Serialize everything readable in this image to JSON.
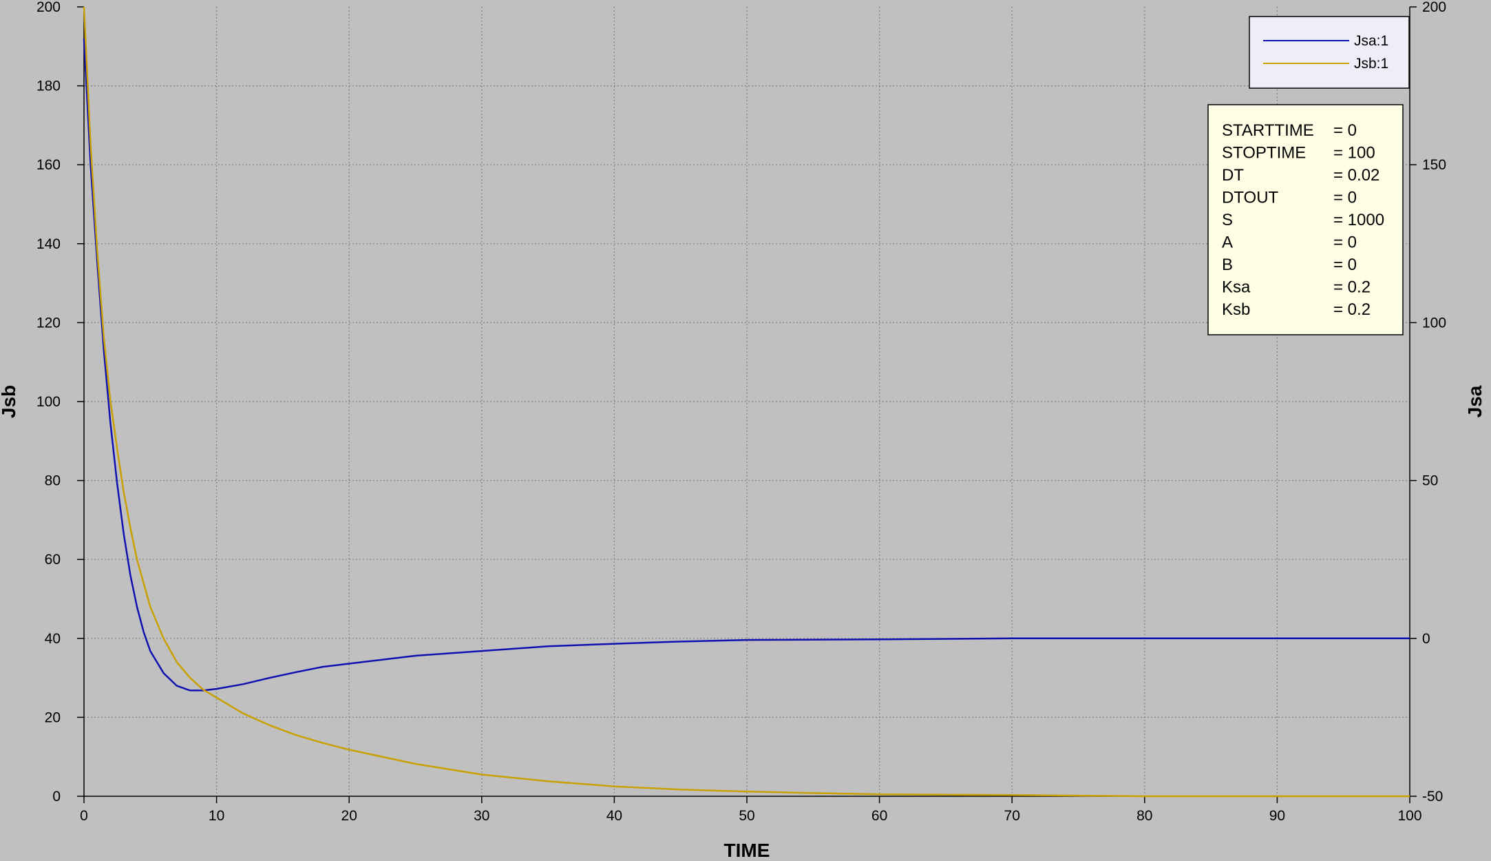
{
  "chart_data": {
    "type": "line",
    "xlabel": "TIME",
    "ylabel_left": "Jsb",
    "ylabel_right": "Jsa",
    "xlim": [
      0,
      100
    ],
    "ylim_left": [
      0,
      200
    ],
    "ylim_right": [
      -50,
      200
    ],
    "x_ticks": [
      0,
      10,
      20,
      30,
      40,
      50,
      60,
      70,
      80,
      90,
      100
    ],
    "y_ticks_left": [
      0,
      20,
      40,
      60,
      80,
      100,
      120,
      140,
      160,
      180,
      200
    ],
    "y_ticks_right": [
      -50,
      0,
      50,
      100,
      150,
      200
    ],
    "grid": true,
    "legend_position": "top-right",
    "series": [
      {
        "name": "Jsa:1",
        "axis": "right",
        "color": "#1010b0",
        "x": [
          0,
          0.5,
          1,
          1.5,
          2,
          2.5,
          3,
          3.5,
          4,
          4.5,
          5,
          6,
          7,
          8,
          9,
          10,
          12,
          14,
          16,
          18,
          20,
          25,
          30,
          35,
          40,
          45,
          50,
          60,
          70,
          80,
          90,
          100
        ],
        "y": [
          190,
          150,
          119,
          91,
          68,
          49,
          33,
          20,
          10,
          2,
          -4,
          -11,
          -15,
          -16.5,
          -16.5,
          -16,
          -14.5,
          -12.5,
          -10.7,
          -9,
          -8,
          -5.5,
          -4,
          -2.5,
          -1.7,
          -1,
          -0.5,
          -0.3,
          0,
          0,
          0,
          0
        ]
      },
      {
        "name": "Jsb:1",
        "axis": "left",
        "color": "#c8a000",
        "x": [
          0,
          0.5,
          1,
          1.5,
          2,
          2.5,
          3,
          3.5,
          4,
          5,
          6,
          7,
          8,
          9,
          10,
          12,
          14,
          16,
          18,
          20,
          25,
          30,
          35,
          40,
          45,
          50,
          55,
          60,
          70,
          80,
          90,
          100
        ],
        "y": [
          200,
          165,
          138,
          116,
          100,
          88,
          77,
          68,
          60,
          48,
          40,
          34,
          30,
          27,
          25,
          21,
          18,
          15.5,
          13.5,
          11.8,
          8.2,
          5.5,
          3.8,
          2.5,
          1.7,
          1.2,
          0.8,
          0.5,
          0.3,
          0,
          0,
          0
        ]
      }
    ],
    "parameters": [
      {
        "name": "STARTTIME",
        "value": "= 0"
      },
      {
        "name": "STOPTIME",
        "value": "= 100"
      },
      {
        "name": "DT",
        "value": "= 0.02"
      },
      {
        "name": "DTOUT",
        "value": "= 0"
      },
      {
        "name": "S",
        "value": "= 1000"
      },
      {
        "name": "A",
        "value": "= 0"
      },
      {
        "name": "B",
        "value": "= 0"
      },
      {
        "name": "Ksa",
        "value": "= 0.2"
      },
      {
        "name": "Ksb",
        "value": "= 0.2"
      }
    ]
  },
  "colors": {
    "background": "#c0c0c0",
    "grid": "#808080",
    "legend_bg": "#eeeef8",
    "params_bg": "#ffffe6"
  }
}
